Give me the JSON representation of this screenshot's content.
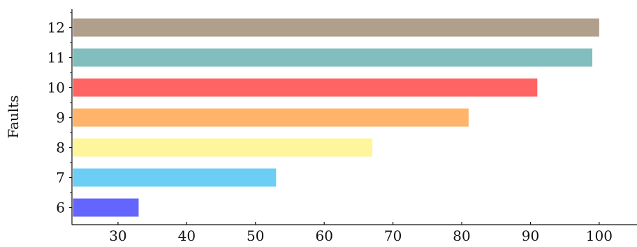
{
  "chart_data": {
    "type": "bar",
    "orientation": "horizontal",
    "title": "",
    "xlabel": "",
    "ylabel": "Faults",
    "categories": [
      "6",
      "7",
      "8",
      "9",
      "10",
      "11",
      "12"
    ],
    "values": [
      33,
      53,
      67,
      81,
      91,
      99,
      100
    ],
    "colors": [
      "#6464ff",
      "#6ccef5",
      "#fff59a",
      "#ffb469",
      "#ff6464",
      "#80bfbd",
      "#b09f8b"
    ],
    "xlim": [
      23.3,
      105.5
    ],
    "xticks": [
      30,
      40,
      50,
      60,
      70,
      80,
      90,
      100
    ],
    "grid": false,
    "legend": "none"
  }
}
